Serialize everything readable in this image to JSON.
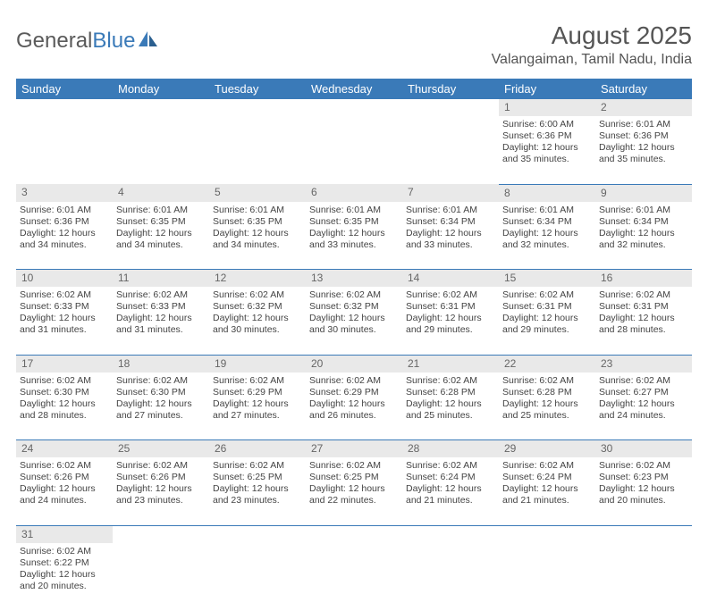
{
  "logo": {
    "text1": "General",
    "text2": "Blue"
  },
  "title": "August 2025",
  "location": "Valangaiman, Tamil Nadu, India",
  "colors": {
    "header_bg": "#3a7ab8",
    "header_fg": "#ffffff",
    "daynum_bg": "#e9e9e9",
    "row_border": "#3a7ab8",
    "text": "#444444"
  },
  "weekdays": [
    "Sunday",
    "Monday",
    "Tuesday",
    "Wednesday",
    "Thursday",
    "Friday",
    "Saturday"
  ],
  "weeks": [
    [
      null,
      null,
      null,
      null,
      null,
      {
        "n": "1",
        "sr": "Sunrise: 6:00 AM",
        "ss": "Sunset: 6:36 PM",
        "d1": "Daylight: 12 hours",
        "d2": "and 35 minutes."
      },
      {
        "n": "2",
        "sr": "Sunrise: 6:01 AM",
        "ss": "Sunset: 6:36 PM",
        "d1": "Daylight: 12 hours",
        "d2": "and 35 minutes."
      }
    ],
    [
      {
        "n": "3",
        "sr": "Sunrise: 6:01 AM",
        "ss": "Sunset: 6:36 PM",
        "d1": "Daylight: 12 hours",
        "d2": "and 34 minutes."
      },
      {
        "n": "4",
        "sr": "Sunrise: 6:01 AM",
        "ss": "Sunset: 6:35 PM",
        "d1": "Daylight: 12 hours",
        "d2": "and 34 minutes."
      },
      {
        "n": "5",
        "sr": "Sunrise: 6:01 AM",
        "ss": "Sunset: 6:35 PM",
        "d1": "Daylight: 12 hours",
        "d2": "and 34 minutes."
      },
      {
        "n": "6",
        "sr": "Sunrise: 6:01 AM",
        "ss": "Sunset: 6:35 PM",
        "d1": "Daylight: 12 hours",
        "d2": "and 33 minutes."
      },
      {
        "n": "7",
        "sr": "Sunrise: 6:01 AM",
        "ss": "Sunset: 6:34 PM",
        "d1": "Daylight: 12 hours",
        "d2": "and 33 minutes."
      },
      {
        "n": "8",
        "sr": "Sunrise: 6:01 AM",
        "ss": "Sunset: 6:34 PM",
        "d1": "Daylight: 12 hours",
        "d2": "and 32 minutes."
      },
      {
        "n": "9",
        "sr": "Sunrise: 6:01 AM",
        "ss": "Sunset: 6:34 PM",
        "d1": "Daylight: 12 hours",
        "d2": "and 32 minutes."
      }
    ],
    [
      {
        "n": "10",
        "sr": "Sunrise: 6:02 AM",
        "ss": "Sunset: 6:33 PM",
        "d1": "Daylight: 12 hours",
        "d2": "and 31 minutes."
      },
      {
        "n": "11",
        "sr": "Sunrise: 6:02 AM",
        "ss": "Sunset: 6:33 PM",
        "d1": "Daylight: 12 hours",
        "d2": "and 31 minutes."
      },
      {
        "n": "12",
        "sr": "Sunrise: 6:02 AM",
        "ss": "Sunset: 6:32 PM",
        "d1": "Daylight: 12 hours",
        "d2": "and 30 minutes."
      },
      {
        "n": "13",
        "sr": "Sunrise: 6:02 AM",
        "ss": "Sunset: 6:32 PM",
        "d1": "Daylight: 12 hours",
        "d2": "and 30 minutes."
      },
      {
        "n": "14",
        "sr": "Sunrise: 6:02 AM",
        "ss": "Sunset: 6:31 PM",
        "d1": "Daylight: 12 hours",
        "d2": "and 29 minutes."
      },
      {
        "n": "15",
        "sr": "Sunrise: 6:02 AM",
        "ss": "Sunset: 6:31 PM",
        "d1": "Daylight: 12 hours",
        "d2": "and 29 minutes."
      },
      {
        "n": "16",
        "sr": "Sunrise: 6:02 AM",
        "ss": "Sunset: 6:31 PM",
        "d1": "Daylight: 12 hours",
        "d2": "and 28 minutes."
      }
    ],
    [
      {
        "n": "17",
        "sr": "Sunrise: 6:02 AM",
        "ss": "Sunset: 6:30 PM",
        "d1": "Daylight: 12 hours",
        "d2": "and 28 minutes."
      },
      {
        "n": "18",
        "sr": "Sunrise: 6:02 AM",
        "ss": "Sunset: 6:30 PM",
        "d1": "Daylight: 12 hours",
        "d2": "and 27 minutes."
      },
      {
        "n": "19",
        "sr": "Sunrise: 6:02 AM",
        "ss": "Sunset: 6:29 PM",
        "d1": "Daylight: 12 hours",
        "d2": "and 27 minutes."
      },
      {
        "n": "20",
        "sr": "Sunrise: 6:02 AM",
        "ss": "Sunset: 6:29 PM",
        "d1": "Daylight: 12 hours",
        "d2": "and 26 minutes."
      },
      {
        "n": "21",
        "sr": "Sunrise: 6:02 AM",
        "ss": "Sunset: 6:28 PM",
        "d1": "Daylight: 12 hours",
        "d2": "and 25 minutes."
      },
      {
        "n": "22",
        "sr": "Sunrise: 6:02 AM",
        "ss": "Sunset: 6:28 PM",
        "d1": "Daylight: 12 hours",
        "d2": "and 25 minutes."
      },
      {
        "n": "23",
        "sr": "Sunrise: 6:02 AM",
        "ss": "Sunset: 6:27 PM",
        "d1": "Daylight: 12 hours",
        "d2": "and 24 minutes."
      }
    ],
    [
      {
        "n": "24",
        "sr": "Sunrise: 6:02 AM",
        "ss": "Sunset: 6:26 PM",
        "d1": "Daylight: 12 hours",
        "d2": "and 24 minutes."
      },
      {
        "n": "25",
        "sr": "Sunrise: 6:02 AM",
        "ss": "Sunset: 6:26 PM",
        "d1": "Daylight: 12 hours",
        "d2": "and 23 minutes."
      },
      {
        "n": "26",
        "sr": "Sunrise: 6:02 AM",
        "ss": "Sunset: 6:25 PM",
        "d1": "Daylight: 12 hours",
        "d2": "and 23 minutes."
      },
      {
        "n": "27",
        "sr": "Sunrise: 6:02 AM",
        "ss": "Sunset: 6:25 PM",
        "d1": "Daylight: 12 hours",
        "d2": "and 22 minutes."
      },
      {
        "n": "28",
        "sr": "Sunrise: 6:02 AM",
        "ss": "Sunset: 6:24 PM",
        "d1": "Daylight: 12 hours",
        "d2": "and 21 minutes."
      },
      {
        "n": "29",
        "sr": "Sunrise: 6:02 AM",
        "ss": "Sunset: 6:24 PM",
        "d1": "Daylight: 12 hours",
        "d2": "and 21 minutes."
      },
      {
        "n": "30",
        "sr": "Sunrise: 6:02 AM",
        "ss": "Sunset: 6:23 PM",
        "d1": "Daylight: 12 hours",
        "d2": "and 20 minutes."
      }
    ],
    [
      {
        "n": "31",
        "sr": "Sunrise: 6:02 AM",
        "ss": "Sunset: 6:22 PM",
        "d1": "Daylight: 12 hours",
        "d2": "and 20 minutes."
      },
      null,
      null,
      null,
      null,
      null,
      null
    ]
  ]
}
